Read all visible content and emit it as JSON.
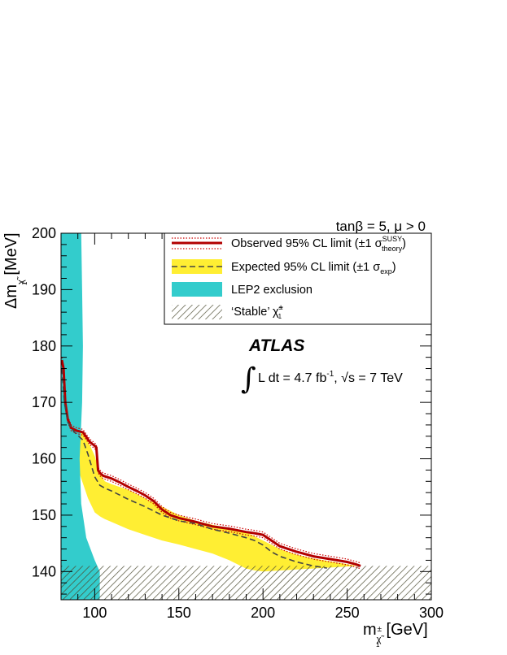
{
  "chart_data": {
    "type": "line",
    "header": "tanβ = 5, μ > 0",
    "xlabel": {
      "main": "m",
      "sub": "χ̃",
      "subsub": "1",
      "sup": "±",
      "unit": " [GeV]"
    },
    "ylabel": {
      "main": "Δm",
      "sub": "χ̃",
      "subsub": "1",
      "unit": " [MeV]"
    },
    "xlim": [
      80,
      300
    ],
    "ylim": [
      135,
      200
    ],
    "xticks": [
      100,
      150,
      200,
      250,
      300
    ],
    "yticks": [
      140,
      150,
      160,
      170,
      180,
      190,
      200
    ],
    "xtick_labels": [
      "100",
      "150",
      "200",
      "250",
      "300"
    ],
    "ytick_labels": [
      "140",
      "150",
      "160",
      "170",
      "180",
      "190",
      "200"
    ],
    "atlas_label": "ATLAS",
    "lumi_label": {
      "text": "L dt = 4.7 fb",
      "sup": "-1",
      "mid": ", ",
      "sqrt": "s",
      "tail": " = 7 TeV"
    },
    "legend": {
      "observed": {
        "text": "Observed 95% CL limit (±1 σ",
        "sup": "SUSY",
        "sub": "theory",
        "close": ")"
      },
      "expected": {
        "text": "Expected 95% CL limit (±1 σ",
        "sub": "exp",
        "close": ")"
      },
      "lep": "LEP2 exclusion",
      "stable": {
        "text": "‘Stable’ χ̃",
        "sup": "±",
        "sub": "1"
      }
    },
    "series": [
      {
        "name": "Observed 95% CL limit",
        "color": "#b20000",
        "x": [
          80.5,
          81.5,
          82.5,
          84,
          86,
          89,
          93,
          97,
          100,
          101,
          102,
          103,
          105,
          110,
          115,
          120,
          125,
          130,
          135,
          140,
          145,
          150,
          160,
          170,
          180,
          190,
          195,
          200,
          205,
          210,
          220,
          230,
          240,
          250,
          255,
          258
        ],
        "y": [
          177.5,
          176,
          170,
          167,
          165.5,
          165,
          164.7,
          163,
          162.3,
          162,
          158,
          157.5,
          157,
          156.5,
          155.8,
          155,
          154.3,
          153.5,
          152.5,
          151,
          150,
          149.5,
          148.8,
          148,
          147.6,
          147,
          146.8,
          146.5,
          145.5,
          144.5,
          143.5,
          142.7,
          142.2,
          141.7,
          141.3,
          141
        ]
      },
      {
        "name": "Expected 95% CL limit",
        "color": "#444444",
        "x": [
          80.5,
          82,
          84,
          88,
          93,
          96,
          100,
          103,
          106,
          110,
          120,
          130,
          140,
          150,
          160,
          170,
          180,
          190,
          195,
          200,
          205,
          210,
          220,
          230,
          238
        ],
        "y": [
          176,
          170,
          166.5,
          164.7,
          163.3,
          160.8,
          156.8,
          155.3,
          154.8,
          154.3,
          152.8,
          151.5,
          150,
          149,
          148.5,
          147.5,
          146.8,
          146,
          145.5,
          144.7,
          143.5,
          142.7,
          141.7,
          141,
          140.6
        ]
      },
      {
        "name": "Expected band upper",
        "color": "#ffee33",
        "x": [
          80.5,
          82,
          84,
          88,
          93,
          97,
          100,
          103,
          106,
          110,
          120,
          130,
          140,
          150,
          160,
          170,
          180,
          190,
          200,
          210,
          220,
          230,
          240,
          250,
          256
        ],
        "y": [
          177,
          172,
          168,
          165.5,
          164.5,
          162.5,
          160.5,
          157.5,
          156,
          155.5,
          154.5,
          153,
          151.5,
          150,
          149,
          148.3,
          147.7,
          147,
          145.5,
          144,
          143,
          142.3,
          141.8,
          141.3,
          141
        ]
      },
      {
        "name": "Expected band lower",
        "color": "#ffee33",
        "x": [
          80.5,
          81,
          82,
          84,
          88,
          92,
          96,
          100,
          103,
          106,
          110,
          120,
          130,
          140,
          150,
          160,
          170,
          180,
          190,
          195,
          200
        ],
        "y": [
          176,
          172,
          165.5,
          163.5,
          160,
          156.5,
          153,
          150.5,
          149.8,
          149.3,
          148.8,
          147.5,
          146.5,
          145.5,
          144.8,
          144,
          143.2,
          142,
          140.5,
          140.2,
          140
        ]
      },
      {
        "name": "LEP2 exclusion",
        "color": "#33cccc",
        "x": [
          80,
          92,
          92.5,
          93,
          92.5,
          91.5,
          91,
          92,
          95,
          100,
          103,
          103,
          80
        ],
        "y": [
          200,
          200,
          190,
          180,
          170,
          163,
          160,
          152,
          146,
          142,
          140,
          135,
          135
        ]
      }
    ],
    "stable_region": {
      "y_max": 141
    },
    "colors": {
      "observed": "#b20000",
      "observed_band": "#cc0000",
      "expected": "#444444",
      "expected_band": "#ffee33",
      "lep": "#33cccc",
      "hatch": "#4d4d33"
    },
    "grid": false,
    "legend_position": "top-right"
  }
}
